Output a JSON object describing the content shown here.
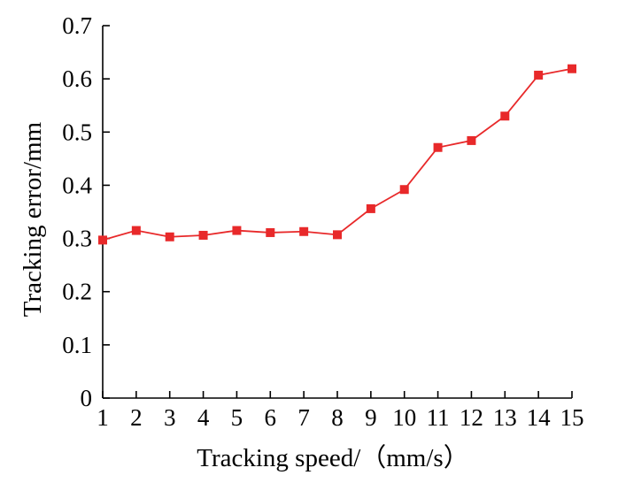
{
  "chart_data": {
    "type": "line",
    "title": "",
    "xlabel": "Tracking speed/（mm/s）",
    "ylabel": "Tracking error/mm",
    "x": [
      1,
      2,
      3,
      4,
      5,
      6,
      7,
      8,
      9,
      10,
      11,
      12,
      13,
      14,
      15
    ],
    "series": [
      {
        "values": [
          0.297,
          0.315,
          0.303,
          0.306,
          0.315,
          0.311,
          0.313,
          0.307,
          0.356,
          0.392,
          0.471,
          0.484,
          0.53,
          0.607,
          0.619
        ],
        "color": "#e8292a",
        "marker": "square"
      }
    ],
    "xlim": [
      1,
      15
    ],
    "ylim": [
      0,
      0.7
    ],
    "xticks": [
      "1",
      "2",
      "3",
      "4",
      "5",
      "6",
      "7",
      "8",
      "9",
      "10",
      "11",
      "12",
      "13",
      "14",
      "15"
    ],
    "yticks": [
      "0",
      "0.1",
      "0.2",
      "0.3",
      "0.4",
      "0.5",
      "0.6",
      "0.7"
    ],
    "grid": false,
    "legend": "none"
  }
}
